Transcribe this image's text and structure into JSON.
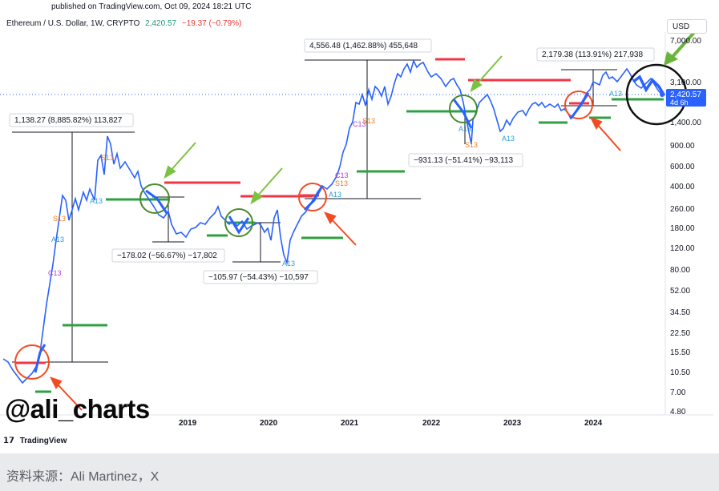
{
  "header": {
    "published": "published on TradingView.com, Oct 09, 2024 18:21 UTC",
    "symbol": "Ethereum / U.S. Dollar, 1W, CRYPTO",
    "price": "2,420.57",
    "change": "−19.37 (−0.79%)",
    "currency": "USD"
  },
  "footer": {
    "brand": "TradingView",
    "source": "资料来源：Ali Martinez，X",
    "watermark": "@ali_charts"
  },
  "colors": {
    "price_line": "#2962ff",
    "buy_signal": "#2ea043",
    "sell_signal": "#f23645",
    "arrow_green": "#7cc242",
    "arrow_red": "#f44a22",
    "last_price_badge": "#2962ff"
  },
  "chart_data": {
    "type": "line",
    "title": "Ethereum / U.S. Dollar, 1W, CRYPTO",
    "y_scale": "log",
    "y_ticks": [
      "7,000.00",
      "3,100.00",
      "1,400.00",
      "900.00",
      "600.00",
      "400.00",
      "260.00",
      "180.00",
      "120.00",
      "80.00",
      "52.00",
      "34.50",
      "22.50",
      "15.50",
      "10.50",
      "7.00",
      "4.80"
    ],
    "x_ticks": [
      "2019",
      "2020",
      "2021",
      "2022",
      "2023",
      "2024"
    ],
    "last_price_label": "2,420.57",
    "countdown_label": "4d 6h",
    "series": [
      {
        "name": "ETHUSD",
        "x": [
          "2017-04",
          "2017-05",
          "2017-06",
          "2017-08",
          "2017-10",
          "2017-12",
          "2018-01",
          "2018-02",
          "2018-04",
          "2018-06",
          "2018-09",
          "2018-12",
          "2019-02",
          "2019-04",
          "2019-06",
          "2019-08",
          "2019-10",
          "2019-12",
          "2020-03",
          "2020-05",
          "2020-07",
          "2020-09",
          "2020-11",
          "2021-01",
          "2021-02",
          "2021-05",
          "2021-07",
          "2021-09",
          "2021-11",
          "2022-01",
          "2022-03",
          "2022-06",
          "2022-08",
          "2022-11",
          "2023-01",
          "2023-04",
          "2023-06",
          "2023-09",
          "2023-11",
          "2024-01",
          "2024-03",
          "2024-05",
          "2024-08",
          "2024-10"
        ],
        "y": [
          7,
          9,
          6,
          12,
          40,
          300,
          800,
          1300,
          600,
          500,
          400,
          130,
          150,
          170,
          260,
          250,
          180,
          140,
          120,
          110,
          230,
          330,
          450,
          900,
          1500,
          3200,
          2300,
          3500,
          4600,
          3300,
          3300,
          1000,
          1900,
          1200,
          1550,
          1850,
          1900,
          1600,
          1550,
          2300,
          3900,
          3200,
          2500,
          2420
        ]
      }
    ],
    "measurements": [
      "1,138.27 (8,885.82%) 113,827",
      "4,556.48 (1,462.88%) 455,648",
      "2,179.38 (113.91%) 217,938",
      "−178.02 (−56.67%) −17,802",
      "−105.97 (−54.43%) −10,597",
      "−931.13 (−51.41%) −93,113"
    ],
    "signal_labels": [
      "C13",
      "A13",
      "S13"
    ]
  }
}
